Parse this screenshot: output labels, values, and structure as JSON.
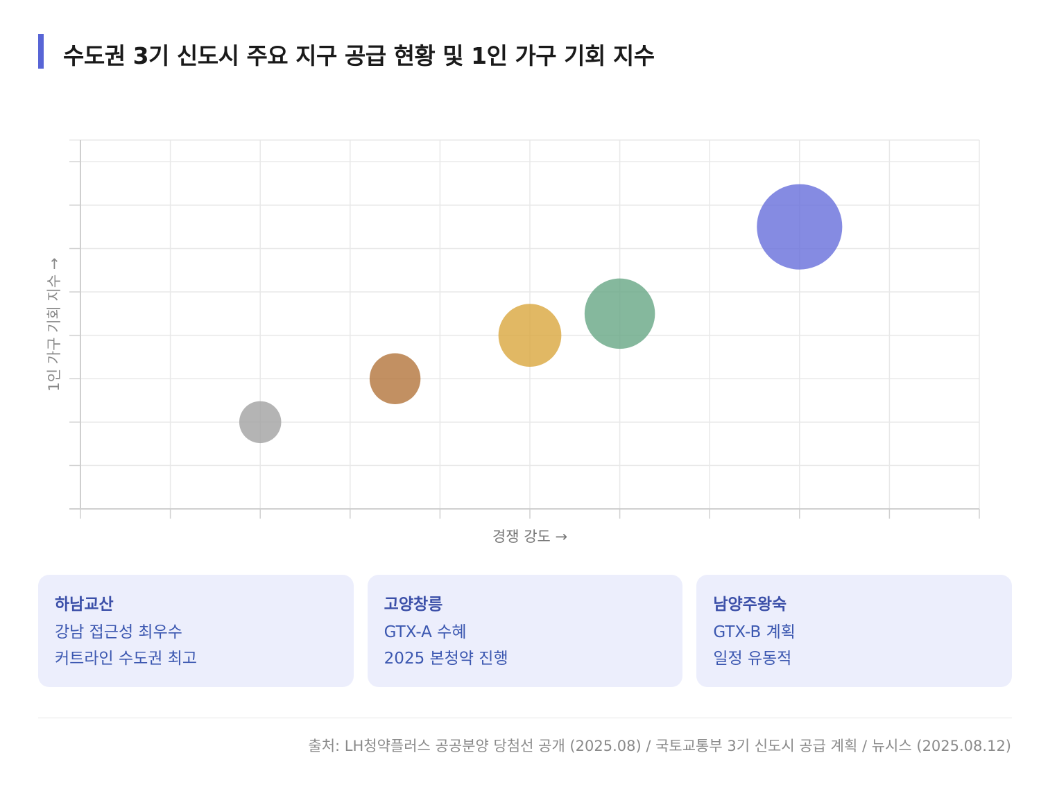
{
  "header": {
    "title": "수도권 3기 신도시 주요 지구 공급 현황 및 1인 가구 기회 지수"
  },
  "chart_data": {
    "type": "scatter",
    "title": "",
    "xlabel": "경쟁 강도 →",
    "ylabel": "1인 가구 기회 지수 →",
    "xlim": [
      0,
      10
    ],
    "ylim": [
      0,
      8.5
    ],
    "grid": true,
    "tick_labels_shown": false,
    "points": [
      {
        "x": 2.0,
        "y": 2.0,
        "size": 1.4,
        "color": "#a3a3a3"
      },
      {
        "x": 3.5,
        "y": 3.0,
        "size": 1.7,
        "color": "#b5773f"
      },
      {
        "x": 5.0,
        "y": 4.0,
        "size": 2.1,
        "color": "#dba842"
      },
      {
        "x": 6.0,
        "y": 4.5,
        "size": 2.35,
        "color": "#6aa888"
      },
      {
        "x": 8.0,
        "y": 6.5,
        "size": 2.85,
        "color": "#6a72dc"
      }
    ]
  },
  "cards": [
    {
      "name": "하남교산",
      "line1": "강남 접근성 최우수",
      "line2": "커트라인 수도권 최고"
    },
    {
      "name": "고양창릉",
      "line1": "GTX-A 수혜",
      "line2": "2025 본청약 진행"
    },
    {
      "name": "남양주왕숙",
      "line1": "GTX-B 계획",
      "line2": "일정 유동적"
    }
  ],
  "footer": {
    "source": "출처: LH청약플러스 공공분양 당첨선 공개 (2025.08) / 국토교통부 3기 신도시 공급 계획 / 뉴시스 (2025.08.12)"
  },
  "colors": {
    "accent": "#5865d6",
    "card_bg": "#eceefc",
    "card_text": "#3b57b0"
  }
}
